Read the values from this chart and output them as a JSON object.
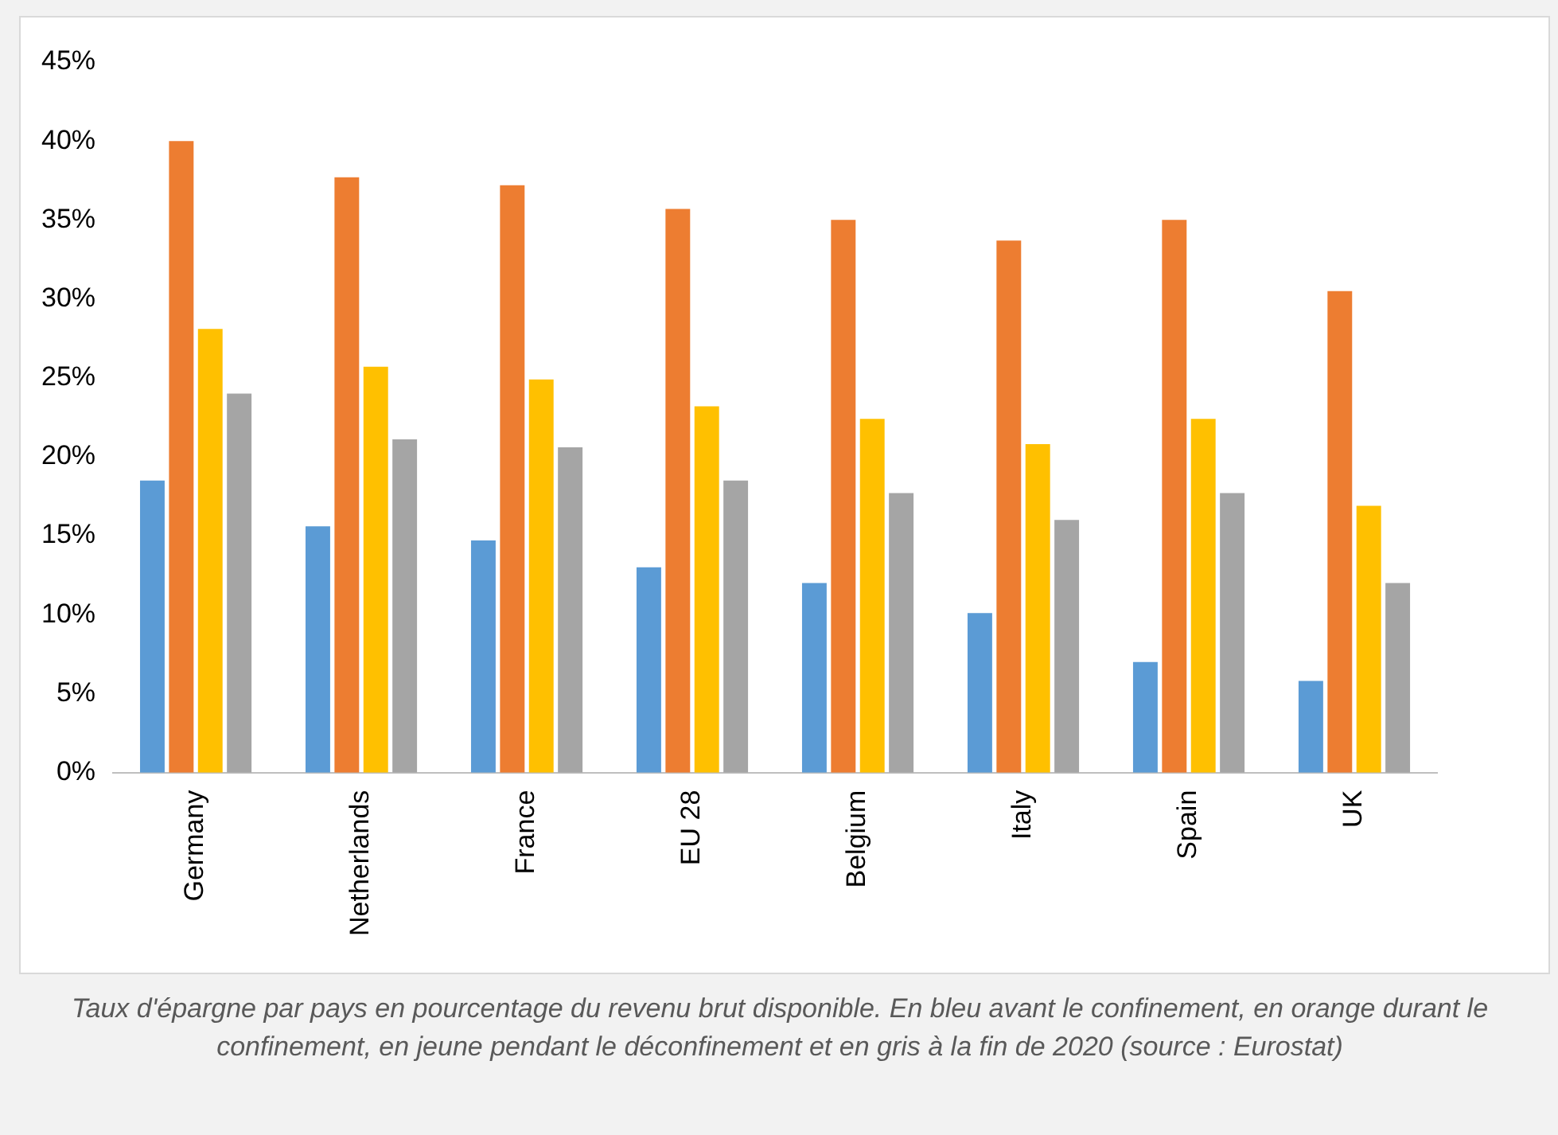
{
  "chart_data": {
    "type": "bar",
    "categories": [
      "Germany",
      "Netherlands",
      "France",
      "EU 28",
      "Belgium",
      "Italy",
      "Spain",
      "UK"
    ],
    "series": [
      {
        "color": "#5b9bd5",
        "values": [
          18.5,
          15.6,
          14.7,
          13.0,
          12.0,
          10.1,
          7.0,
          5.8
        ]
      },
      {
        "color": "#ed7d31",
        "values": [
          40.0,
          37.7,
          37.2,
          35.7,
          35.0,
          33.7,
          35.0,
          30.5
        ]
      },
      {
        "color": "#ffc000",
        "values": [
          28.1,
          25.7,
          24.9,
          23.2,
          22.4,
          20.8,
          22.4,
          16.9
        ]
      },
      {
        "color": "#a5a5a5",
        "values": [
          24.0,
          21.1,
          20.6,
          18.5,
          17.7,
          16.0,
          17.7,
          12.0
        ]
      }
    ],
    "ylim": [
      0,
      45
    ],
    "yticks": [
      {
        "value": 0,
        "label": "0%"
      },
      {
        "value": 5,
        "label": "5%"
      },
      {
        "value": 10,
        "label": "10%"
      },
      {
        "value": 15,
        "label": "15%"
      },
      {
        "value": 20,
        "label": "20%"
      },
      {
        "value": 25,
        "label": "25%"
      },
      {
        "value": 30,
        "label": "30%"
      },
      {
        "value": 35,
        "label": "35%"
      },
      {
        "value": 40,
        "label": "40%"
      },
      {
        "value": 45,
        "label": "45%"
      }
    ],
    "grid": false,
    "legend": false,
    "annotations": [
      "Taux d'épargne par pays en pourcentage du revenu brut disponible. En bleu avant le confinement, en orange durant le confinement, en jeune pendant le déconfinement et en gris à la fin de 2020 (source : Eurostat)"
    ]
  }
}
